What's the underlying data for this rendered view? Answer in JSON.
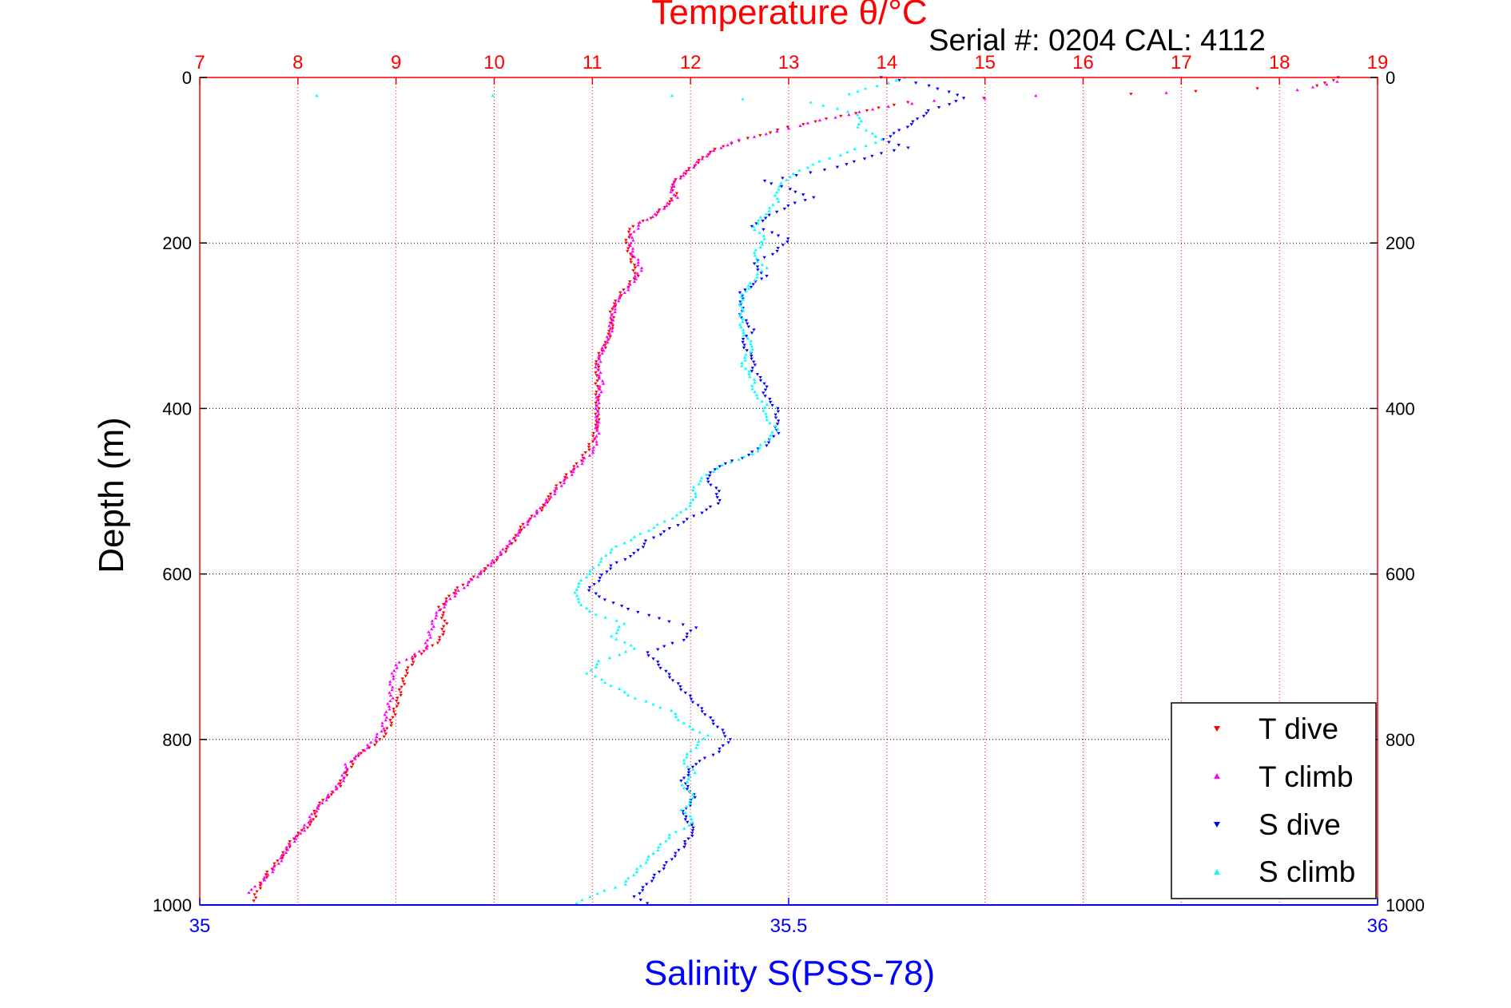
{
  "chart_data": {
    "type": "scatter",
    "title": "Temperature θ/°C",
    "annotation": "Serial #: 0204  CAL: 4112",
    "ylabel": "Depth (m)",
    "xlabel": "Salinity S(PSS-78)",
    "top_axis": {
      "range": [
        7,
        19
      ],
      "ticks": [
        "7",
        "8",
        "9",
        "10",
        "11",
        "12",
        "13",
        "14",
        "15",
        "16",
        "17",
        "18",
        "19"
      ],
      "color": "#ff0000"
    },
    "bottom_axis": {
      "range": [
        35,
        36
      ],
      "ticks": [
        "35",
        "35.5",
        "36"
      ],
      "color": "#0000ff"
    },
    "depth_axis": {
      "range": [
        0,
        1000
      ],
      "reversed": true,
      "ticks": [
        "0",
        "200",
        "400",
        "600",
        "800",
        "1000"
      ]
    },
    "grid": true,
    "legend_position": "bottom-right",
    "series": [
      {
        "name": "T dive",
        "axis": "temperature",
        "color": "#ff0000",
        "marker": "triangle-down",
        "points": [
          [
            18.6,
            0
          ],
          [
            18.4,
            10
          ],
          [
            16.5,
            20
          ],
          [
            15,
            25
          ],
          [
            14.2,
            30
          ],
          [
            13.8,
            40
          ],
          [
            13.4,
            50
          ],
          [
            13.0,
            60
          ],
          [
            12.7,
            70
          ],
          [
            12.4,
            80
          ],
          [
            12.2,
            90
          ],
          [
            12.1,
            100
          ],
          [
            12.0,
            110
          ],
          [
            11.9,
            120
          ],
          [
            11.8,
            130
          ],
          [
            11.85,
            140
          ],
          [
            11.8,
            150
          ],
          [
            11.7,
            160
          ],
          [
            11.6,
            170
          ],
          [
            11.4,
            180
          ],
          [
            11.35,
            200
          ],
          [
            11.4,
            220
          ],
          [
            11.45,
            240
          ],
          [
            11.3,
            260
          ],
          [
            11.2,
            280
          ],
          [
            11.2,
            300
          ],
          [
            11.15,
            320
          ],
          [
            11.05,
            340
          ],
          [
            11.05,
            360
          ],
          [
            11.05,
            380
          ],
          [
            11.05,
            400
          ],
          [
            11.05,
            420
          ],
          [
            11.0,
            440
          ],
          [
            10.9,
            460
          ],
          [
            10.75,
            480
          ],
          [
            10.6,
            500
          ],
          [
            10.5,
            520
          ],
          [
            10.3,
            540
          ],
          [
            10.2,
            560
          ],
          [
            10.05,
            580
          ],
          [
            9.85,
            600
          ],
          [
            9.6,
            620
          ],
          [
            9.45,
            640
          ],
          [
            9.5,
            660
          ],
          [
            9.45,
            680
          ],
          [
            9.2,
            700
          ],
          [
            9.1,
            720
          ],
          [
            9.05,
            740
          ],
          [
            9.0,
            760
          ],
          [
            8.95,
            780
          ],
          [
            8.85,
            800
          ],
          [
            8.6,
            820
          ],
          [
            8.5,
            840
          ],
          [
            8.4,
            860
          ],
          [
            8.2,
            880
          ],
          [
            8.15,
            900
          ],
          [
            7.95,
            920
          ],
          [
            7.85,
            940
          ],
          [
            7.7,
            960
          ],
          [
            7.6,
            980
          ],
          [
            7.55,
            995
          ]
        ]
      },
      {
        "name": "T climb",
        "axis": "temperature",
        "color": "#ff00ff",
        "marker": "triangle-up",
        "points": [
          [
            18.6,
            5
          ],
          [
            18.2,
            15
          ],
          [
            15.5,
            22
          ],
          [
            14.5,
            28
          ],
          [
            14.0,
            35
          ],
          [
            13.6,
            45
          ],
          [
            13.2,
            55
          ],
          [
            12.9,
            65
          ],
          [
            12.5,
            75
          ],
          [
            12.3,
            85
          ],
          [
            12.15,
            95
          ],
          [
            12.05,
            105
          ],
          [
            11.95,
            115
          ],
          [
            11.85,
            125
          ],
          [
            11.8,
            135
          ],
          [
            11.85,
            145
          ],
          [
            11.75,
            155
          ],
          [
            11.65,
            165
          ],
          [
            11.5,
            175
          ],
          [
            11.4,
            190
          ],
          [
            11.4,
            210
          ],
          [
            11.5,
            230
          ],
          [
            11.4,
            250
          ],
          [
            11.25,
            270
          ],
          [
            11.2,
            290
          ],
          [
            11.18,
            310
          ],
          [
            11.1,
            330
          ],
          [
            11.05,
            350
          ],
          [
            11.1,
            370
          ],
          [
            11.05,
            390
          ],
          [
            11.05,
            410
          ],
          [
            11.05,
            430
          ],
          [
            11.02,
            450
          ],
          [
            10.85,
            470
          ],
          [
            10.7,
            490
          ],
          [
            10.55,
            510
          ],
          [
            10.4,
            530
          ],
          [
            10.25,
            550
          ],
          [
            10.1,
            570
          ],
          [
            9.95,
            590
          ],
          [
            9.75,
            610
          ],
          [
            9.55,
            630
          ],
          [
            9.4,
            650
          ],
          [
            9.35,
            670
          ],
          [
            9.3,
            690
          ],
          [
            9.0,
            710
          ],
          [
            8.95,
            730
          ],
          [
            8.95,
            750
          ],
          [
            8.9,
            770
          ],
          [
            8.85,
            790
          ],
          [
            8.7,
            810
          ],
          [
            8.5,
            830
          ],
          [
            8.45,
            850
          ],
          [
            8.3,
            870
          ],
          [
            8.15,
            890
          ],
          [
            8.05,
            910
          ],
          [
            7.9,
            930
          ],
          [
            7.8,
            950
          ],
          [
            7.65,
            970
          ],
          [
            7.5,
            985
          ]
        ]
      },
      {
        "name": "S dive",
        "axis": "salinity",
        "color": "#0000ff",
        "marker": "triangle-down",
        "points": [
          [
            35.58,
            0
          ],
          [
            35.62,
            10
          ],
          [
            35.65,
            25
          ],
          [
            35.62,
            40
          ],
          [
            35.6,
            60
          ],
          [
            35.58,
            75
          ],
          [
            35.6,
            85
          ],
          [
            35.57,
            95
          ],
          [
            35.55,
            105
          ],
          [
            35.52,
            115
          ],
          [
            35.48,
            125
          ],
          [
            35.5,
            135
          ],
          [
            35.52,
            145
          ],
          [
            35.5,
            155
          ],
          [
            35.48,
            170
          ],
          [
            35.47,
            180
          ],
          [
            35.5,
            195
          ],
          [
            35.49,
            210
          ],
          [
            35.47,
            225
          ],
          [
            35.48,
            240
          ],
          [
            35.46,
            260
          ],
          [
            35.46,
            275
          ],
          [
            35.46,
            290
          ],
          [
            35.47,
            305
          ],
          [
            35.46,
            320
          ],
          [
            35.47,
            340
          ],
          [
            35.47,
            355
          ],
          [
            35.48,
            370
          ],
          [
            35.48,
            385
          ],
          [
            35.49,
            400
          ],
          [
            35.49,
            415
          ],
          [
            35.49,
            430
          ],
          [
            35.48,
            445
          ],
          [
            35.46,
            460
          ],
          [
            35.44,
            470
          ],
          [
            35.43,
            485
          ],
          [
            35.44,
            500
          ],
          [
            35.44,
            515
          ],
          [
            35.42,
            530
          ],
          [
            35.4,
            545
          ],
          [
            35.38,
            560
          ],
          [
            35.37,
            575
          ],
          [
            35.35,
            590
          ],
          [
            35.34,
            605
          ],
          [
            35.33,
            620
          ],
          [
            35.35,
            635
          ],
          [
            35.38,
            650
          ],
          [
            35.42,
            665
          ],
          [
            35.41,
            680
          ],
          [
            35.38,
            695
          ],
          [
            35.39,
            710
          ],
          [
            35.4,
            725
          ],
          [
            35.41,
            740
          ],
          [
            35.42,
            755
          ],
          [
            35.43,
            770
          ],
          [
            35.44,
            785
          ],
          [
            35.45,
            800
          ],
          [
            35.44,
            815
          ],
          [
            35.42,
            830
          ],
          [
            35.41,
            850
          ],
          [
            35.42,
            870
          ],
          [
            35.41,
            890
          ],
          [
            35.42,
            910
          ],
          [
            35.41,
            930
          ],
          [
            35.4,
            945
          ],
          [
            35.39,
            960
          ],
          [
            35.38,
            975
          ],
          [
            35.37,
            990
          ],
          [
            35.38,
            998
          ]
        ]
      },
      {
        "name": "S climb",
        "axis": "salinity",
        "color": "#00ffff",
        "marker": "triangle-up",
        "points": [
          [
            35.6,
            0
          ],
          [
            35.55,
            20
          ],
          [
            35.1,
            22
          ],
          [
            35.25,
            22
          ],
          [
            35.4,
            22
          ],
          [
            35.52,
            30
          ],
          [
            35.56,
            45
          ],
          [
            35.56,
            60
          ],
          [
            35.58,
            75
          ],
          [
            35.55,
            90
          ],
          [
            35.52,
            105
          ],
          [
            35.5,
            120
          ],
          [
            35.49,
            135
          ],
          [
            35.49,
            150
          ],
          [
            35.48,
            165
          ],
          [
            35.47,
            180
          ],
          [
            35.48,
            195
          ],
          [
            35.47,
            215
          ],
          [
            35.48,
            230
          ],
          [
            35.47,
            245
          ],
          [
            35.46,
            265
          ],
          [
            35.46,
            285
          ],
          [
            35.46,
            305
          ],
          [
            35.47,
            325
          ],
          [
            35.46,
            345
          ],
          [
            35.47,
            365
          ],
          [
            35.47,
            380
          ],
          [
            35.48,
            395
          ],
          [
            35.48,
            410
          ],
          [
            35.49,
            425
          ],
          [
            35.48,
            440
          ],
          [
            35.47,
            455
          ],
          [
            35.45,
            465
          ],
          [
            35.43,
            480
          ],
          [
            35.42,
            495
          ],
          [
            35.42,
            510
          ],
          [
            35.41,
            525
          ],
          [
            35.39,
            540
          ],
          [
            35.37,
            555
          ],
          [
            35.35,
            570
          ],
          [
            35.34,
            585
          ],
          [
            35.33,
            600
          ],
          [
            35.32,
            615
          ],
          [
            35.32,
            630
          ],
          [
            35.33,
            645
          ],
          [
            35.36,
            660
          ],
          [
            35.35,
            675
          ],
          [
            35.37,
            690
          ],
          [
            35.34,
            705
          ],
          [
            35.33,
            720
          ],
          [
            35.35,
            735
          ],
          [
            35.37,
            750
          ],
          [
            35.4,
            765
          ],
          [
            35.41,
            780
          ],
          [
            35.43,
            795
          ],
          [
            35.42,
            810
          ],
          [
            35.41,
            825
          ],
          [
            35.42,
            840
          ],
          [
            35.41,
            855
          ],
          [
            35.42,
            870
          ],
          [
            35.41,
            885
          ],
          [
            35.42,
            900
          ],
          [
            35.4,
            915
          ],
          [
            35.39,
            930
          ],
          [
            35.38,
            945
          ],
          [
            35.37,
            960
          ],
          [
            35.36,
            975
          ],
          [
            35.33,
            990
          ],
          [
            35.32,
            998
          ]
        ]
      }
    ]
  }
}
